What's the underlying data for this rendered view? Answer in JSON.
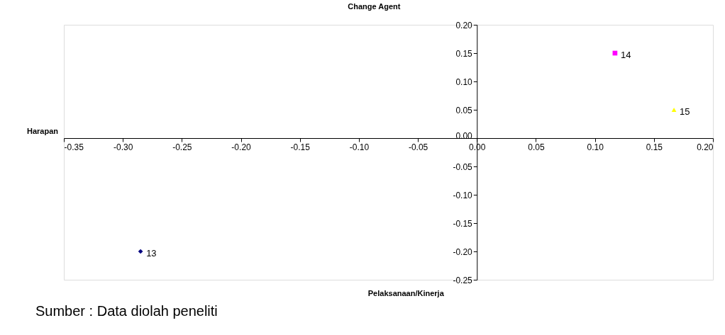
{
  "chart_data": {
    "type": "scatter",
    "title": "Change Agent",
    "xlabel": "Pelaksanaan/Kinerja",
    "ylabel": "Harapan",
    "xlim": [
      -0.35,
      0.2
    ],
    "xticks": [
      {
        "value": -0.35,
        "label": "-0.35"
      },
      {
        "value": -0.3,
        "label": "-0.30"
      },
      {
        "value": -0.25,
        "label": "-0.25"
      },
      {
        "value": -0.2,
        "label": "-0.20"
      },
      {
        "value": -0.15,
        "label": "-0.15"
      },
      {
        "value": -0.1,
        "label": "-0.10"
      },
      {
        "value": -0.05,
        "label": "-0.05"
      },
      {
        "value": 0,
        "label": "0.00"
      },
      {
        "value": 0.05,
        "label": "0.05"
      },
      {
        "value": 0.1,
        "label": "0.10"
      },
      {
        "value": 0.15,
        "label": "0.15"
      },
      {
        "value": 0.2,
        "label": "0.20"
      }
    ],
    "ylim": [
      -0.25,
      0.2
    ],
    "yticks": [
      {
        "value": -0.25,
        "label": "-0.25"
      },
      {
        "value": -0.2,
        "label": "-0.20"
      },
      {
        "value": -0.15,
        "label": "-0.15"
      },
      {
        "value": -0.1,
        "label": "-0.10"
      },
      {
        "value": -0.05,
        "label": "-0.05"
      },
      {
        "value": 0,
        "label": "0.00"
      },
      {
        "value": 0.05,
        "label": "0.05"
      },
      {
        "value": 0.1,
        "label": "0.10"
      },
      {
        "value": 0.15,
        "label": "0.15"
      },
      {
        "value": 0.2,
        "label": "0.20"
      }
    ],
    "series": [
      {
        "name": "13",
        "color": "#000080",
        "marker": "diamond",
        "x": [
          -0.285
        ],
        "values": [
          -0.2
        ]
      },
      {
        "name": "14",
        "color": "#ff00ff",
        "marker": "square",
        "x": [
          0.117
        ],
        "values": [
          0.15
        ]
      },
      {
        "name": "15",
        "color": "#ffff00",
        "marker": "triangle",
        "x": [
          0.167
        ],
        "values": [
          0.05
        ]
      }
    ],
    "grid": false,
    "annotations": [
      "Sumber : Data diolah peneliti"
    ]
  }
}
